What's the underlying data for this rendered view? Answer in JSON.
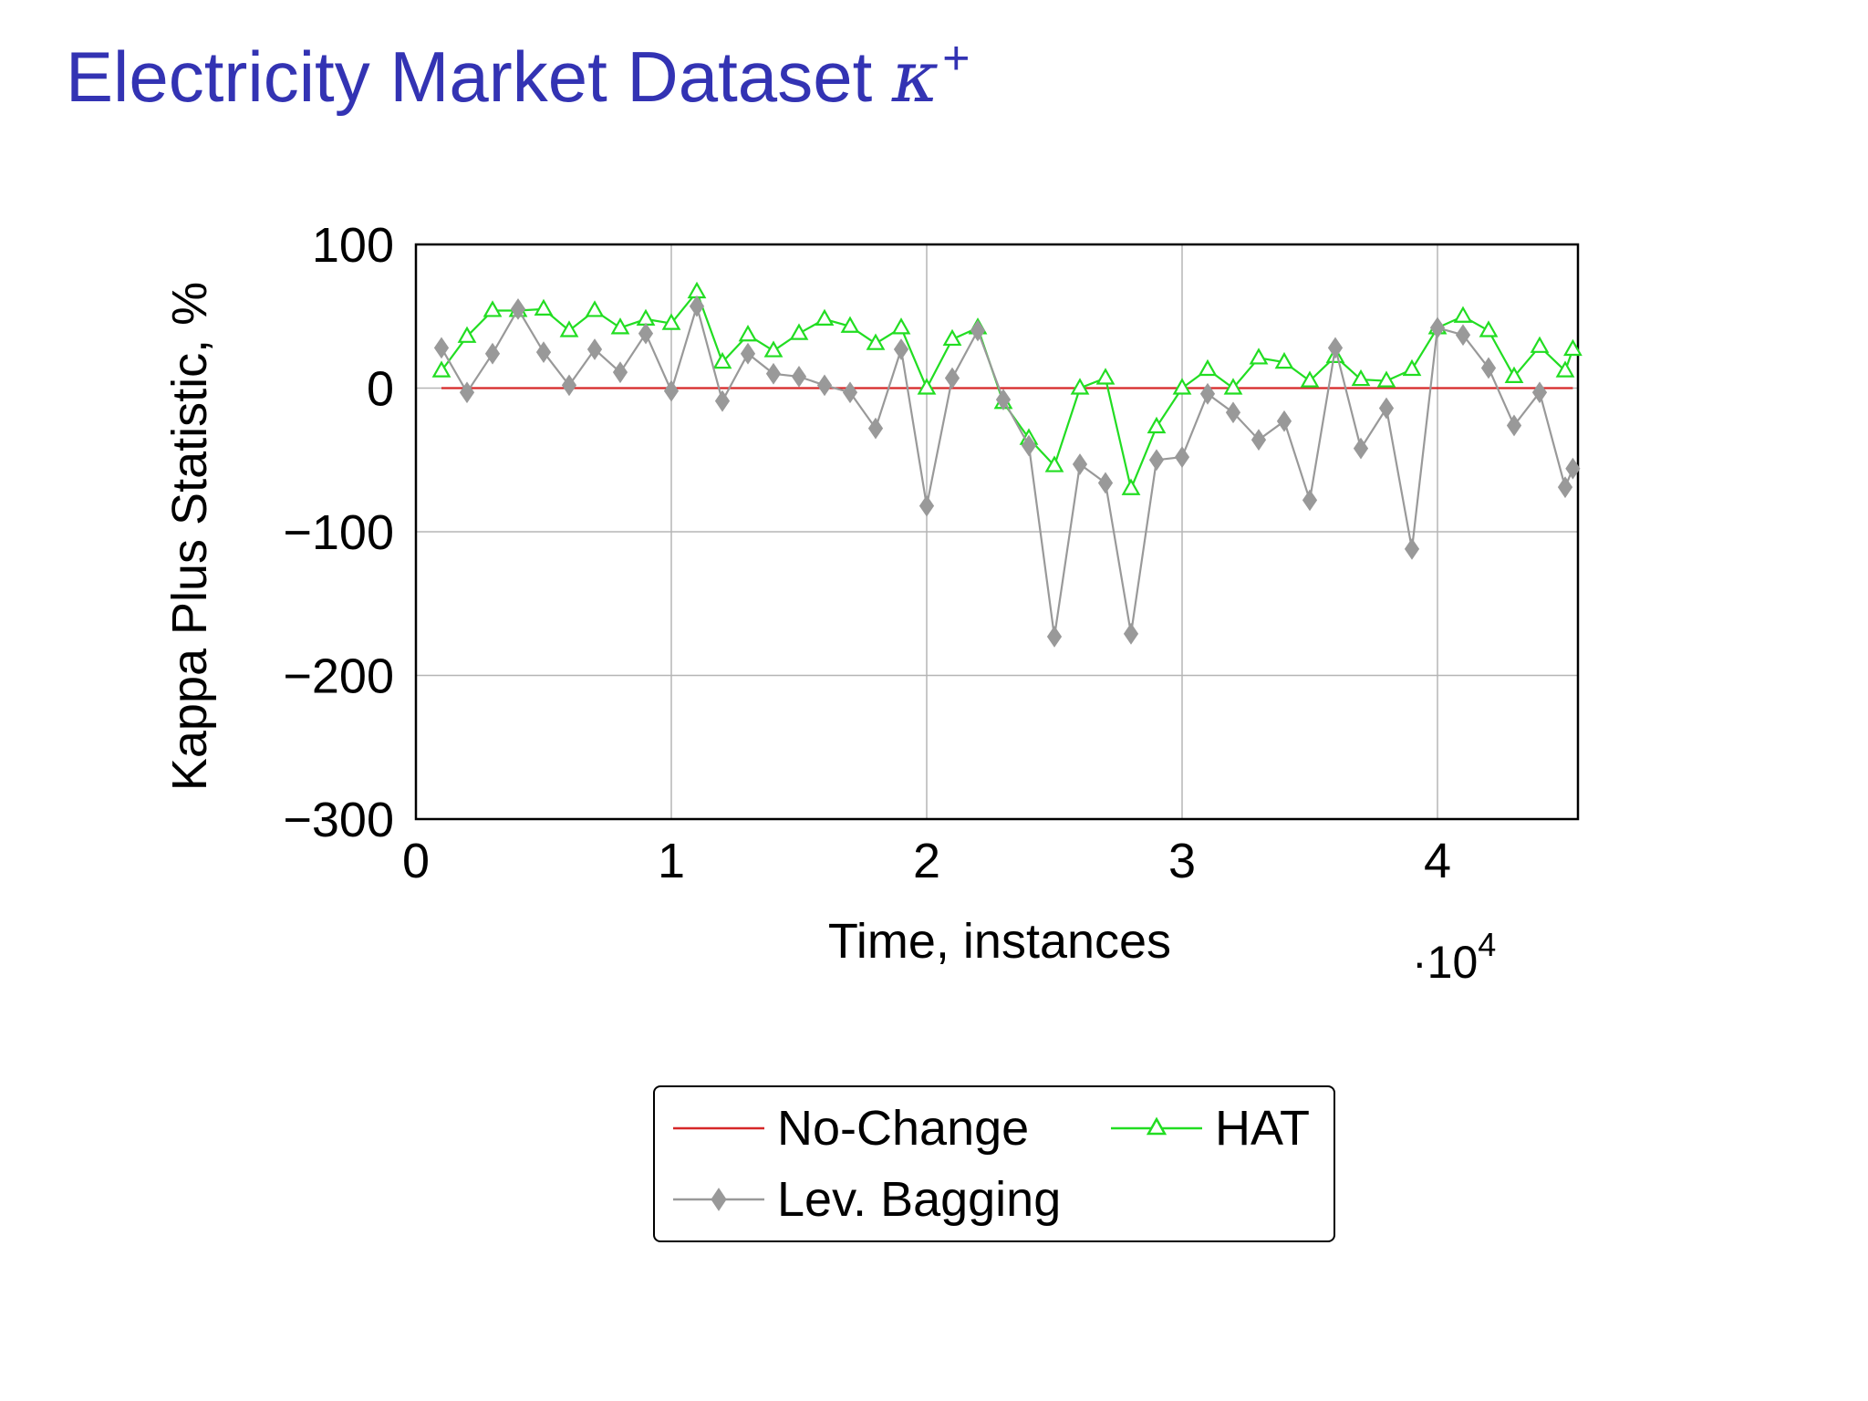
{
  "slide": {
    "title_text": "Electricity Market Dataset ",
    "title_symbol": "κ",
    "title_superscript": "+"
  },
  "chart_data": {
    "type": "line",
    "title": "",
    "xlabel": "Time, instances",
    "x_multiplier_label": "·10",
    "x_multiplier_exponent": "4",
    "ylabel": "Kappa Plus Statistic, %",
    "xlim": [
      0,
      4.55
    ],
    "ylim": [
      -300,
      100
    ],
    "x_ticks": [
      0,
      1,
      2,
      3,
      4
    ],
    "x_tick_labels": [
      "0",
      "1",
      "2",
      "3",
      "4"
    ],
    "y_ticks": [
      100,
      0,
      -100,
      -200,
      -300
    ],
    "y_tick_labels": [
      "100",
      "0",
      "−100",
      "−200",
      "−300"
    ],
    "grid": true,
    "legend_position": "below",
    "x": [
      0.1,
      0.2,
      0.3,
      0.4,
      0.5,
      0.6,
      0.7,
      0.8,
      0.9,
      1.0,
      1.1,
      1.2,
      1.3,
      1.4,
      1.5,
      1.6,
      1.7,
      1.8,
      1.9,
      2.0,
      2.1,
      2.2,
      2.3,
      2.4,
      2.5,
      2.6,
      2.7,
      2.8,
      2.9,
      3.0,
      3.1,
      3.2,
      3.3,
      3.4,
      3.5,
      3.6,
      3.7,
      3.8,
      3.9,
      4.0,
      4.1,
      4.2,
      4.3,
      4.4,
      4.5,
      4.53
    ],
    "series": [
      {
        "name": "No-Change",
        "color": "#d62728",
        "marker": "none",
        "values": [
          0,
          0,
          0,
          0,
          0,
          0,
          0,
          0,
          0,
          0,
          0,
          0,
          0,
          0,
          0,
          0,
          0,
          0,
          0,
          0,
          0,
          0,
          0,
          0,
          0,
          0,
          0,
          0,
          0,
          0,
          0,
          0,
          0,
          0,
          0,
          0,
          0,
          0,
          0,
          0,
          0,
          0,
          0,
          0,
          0,
          0
        ]
      },
      {
        "name": "HAT",
        "color": "#22dd22",
        "marker": "triangle",
        "values": [
          12,
          36,
          54,
          54,
          55,
          40,
          54,
          42,
          48,
          45,
          67,
          18,
          37,
          26,
          38,
          48,
          43,
          31,
          42,
          0,
          34,
          42,
          -10,
          -35,
          -54,
          0,
          7,
          -70,
          -27,
          0,
          13,
          0,
          21,
          18,
          5,
          22,
          6,
          5,
          13,
          42,
          50,
          40,
          8,
          29,
          12,
          27
        ]
      },
      {
        "name": "Lev. Bagging",
        "color": "#999999",
        "marker": "diamond",
        "values": [
          28,
          -3,
          24,
          55,
          25,
          2,
          27,
          11,
          38,
          -2,
          57,
          -9,
          24,
          10,
          8,
          2,
          -3,
          -28,
          27,
          -82,
          7,
          40,
          -8,
          -40,
          -173,
          -53,
          -66,
          -171,
          -50,
          -48,
          -4,
          -17,
          -36,
          -23,
          -78,
          28,
          -42,
          -14,
          -112,
          42,
          37,
          14,
          -26,
          -3,
          -69,
          -56
        ]
      }
    ]
  }
}
